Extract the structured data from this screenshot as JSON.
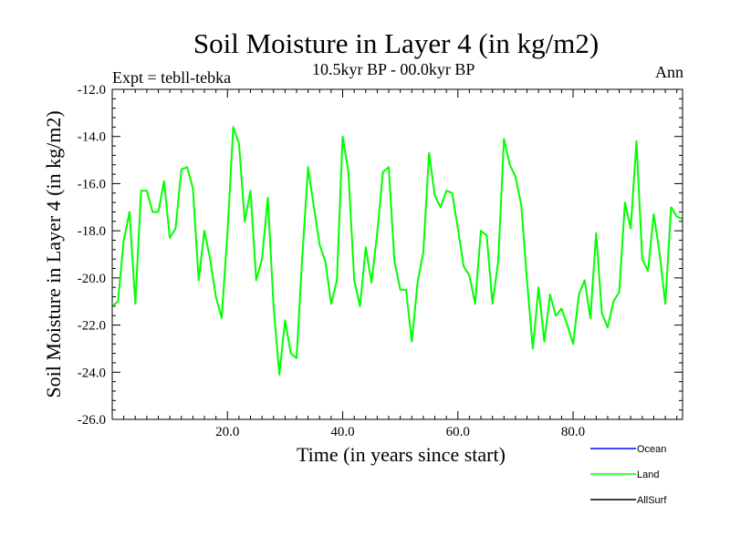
{
  "chart_data": {
    "type": "line",
    "title": "Soil Moisture in Layer 4 (in kg/m2)",
    "subtitle": "10.5kyr BP - 00.0kyr BP",
    "left_label": "Expt = tebll-tebka",
    "right_label": "Ann",
    "xlabel": "Time (in years since start)",
    "ylabel": "Soil Moisture in Layer 4 (in kg/m2)",
    "xlim": [
      0,
      99
    ],
    "ylim": [
      -26,
      -12
    ],
    "x_ticks": [
      20,
      40,
      60,
      80
    ],
    "x_tick_labels": [
      "20.0",
      "40.0",
      "60.0",
      "80.0"
    ],
    "y_ticks": [
      -26,
      -24,
      -22,
      -20,
      -18,
      -16,
      -14,
      -12
    ],
    "y_tick_labels": [
      "-26.0",
      "-24.0",
      "-22.0",
      "-20.0",
      "-18.0",
      "-16.0",
      "-14.0",
      "-12.0"
    ],
    "legend": [
      {
        "name": "Ocean",
        "color": "#0000ff"
      },
      {
        "name": "Land",
        "color": "#00ff00"
      },
      {
        "name": "AllSurf",
        "color": "#000000"
      }
    ],
    "series": [
      {
        "name": "Land",
        "color": "#00ff00",
        "x": [
          0,
          1,
          2,
          3,
          4,
          5,
          6,
          7,
          8,
          9,
          10,
          11,
          12,
          13,
          14,
          15,
          16,
          17,
          18,
          19,
          20,
          21,
          22,
          23,
          24,
          25,
          26,
          27,
          28,
          29,
          30,
          31,
          32,
          33,
          34,
          35,
          36,
          37,
          38,
          39,
          40,
          41,
          42,
          43,
          44,
          45,
          46,
          47,
          48,
          49,
          50,
          51,
          52,
          53,
          54,
          55,
          56,
          57,
          58,
          59,
          60,
          61,
          62,
          63,
          64,
          65,
          66,
          67,
          68,
          69,
          70,
          71,
          72,
          73,
          74,
          75,
          76,
          77,
          78,
          79,
          80,
          81,
          82,
          83,
          84,
          85,
          86,
          87,
          88,
          89,
          90,
          91,
          92,
          93,
          94,
          95,
          96,
          97,
          98,
          99
        ],
        "values": [
          -21.2,
          -21.0,
          -18.4,
          -17.2,
          -21.1,
          -16.3,
          -16.3,
          -17.2,
          -17.2,
          -15.9,
          -18.3,
          -17.9,
          -15.4,
          -15.3,
          -16.2,
          -20.1,
          -18.0,
          -19.2,
          -20.8,
          -21.7,
          -18.1,
          -13.6,
          -14.3,
          -17.6,
          -16.3,
          -20.1,
          -19.2,
          -16.6,
          -21.2,
          -24.1,
          -21.8,
          -23.2,
          -23.4,
          -19.1,
          -15.3,
          -17.0,
          -18.6,
          -19.3,
          -21.1,
          -20.1,
          -14.0,
          -15.5,
          -20.1,
          -21.2,
          -18.7,
          -20.2,
          -18.1,
          -15.5,
          -15.3,
          -19.3,
          -20.5,
          -20.5,
          -22.7,
          -20.2,
          -18.9,
          -14.7,
          -16.5,
          -17.0,
          -16.3,
          -16.4,
          -17.9,
          -19.5,
          -19.9,
          -21.1,
          -18.0,
          -18.2,
          -21.1,
          -19.3,
          -14.1,
          -15.2,
          -15.7,
          -16.9,
          -20.1,
          -23.0,
          -20.4,
          -22.7,
          -20.7,
          -21.6,
          -21.3,
          -22.0,
          -22.8,
          -20.7,
          -20.1,
          -21.7,
          -18.1,
          -21.5,
          -22.1,
          -21.0,
          -20.6,
          -16.8,
          -17.9,
          -14.2,
          -19.2,
          -19.7,
          -17.3,
          -18.9,
          -21.1,
          -17.0,
          -17.4,
          -17.5
        ]
      }
    ]
  }
}
